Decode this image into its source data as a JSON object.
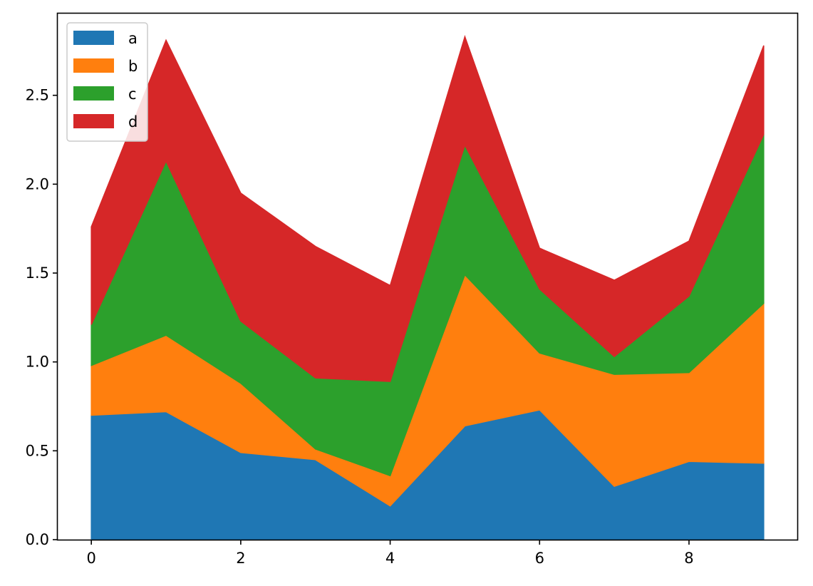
{
  "chart_data": {
    "type": "area",
    "stacked": true,
    "title": "",
    "xlabel": "",
    "ylabel": "",
    "x": [
      0,
      1,
      2,
      3,
      4,
      5,
      6,
      7,
      8,
      9
    ],
    "xlim": [
      -0.45,
      9.45
    ],
    "ylim": [
      0,
      2.96
    ],
    "xticks": [
      0,
      2,
      4,
      6,
      8
    ],
    "yticks": [
      0.0,
      0.5,
      1.0,
      1.5,
      2.0,
      2.5
    ],
    "xtick_labels": [
      "0",
      "2",
      "4",
      "6",
      "8"
    ],
    "ytick_labels": [
      "0.0",
      "0.5",
      "1.0",
      "1.5",
      "2.0",
      "2.5"
    ],
    "grid": false,
    "legend_position": "top-left",
    "series": [
      {
        "name": "a",
        "color": "#1f77b4",
        "values": [
          0.7,
          0.72,
          0.49,
          0.45,
          0.19,
          0.64,
          0.73,
          0.3,
          0.44,
          0.43
        ]
      },
      {
        "name": "b",
        "color": "#ff7f0e",
        "values": [
          0.28,
          0.43,
          0.39,
          0.06,
          0.17,
          0.85,
          0.32,
          0.63,
          0.5,
          0.9
        ]
      },
      {
        "name": "c",
        "color": "#2ca02c",
        "values": [
          0.23,
          0.98,
          0.35,
          0.4,
          0.53,
          0.73,
          0.36,
          0.1,
          0.43,
          0.95
        ]
      },
      {
        "name": "d",
        "color": "#d62728",
        "values": [
          0.55,
          0.68,
          0.72,
          0.74,
          0.54,
          0.61,
          0.23,
          0.43,
          0.31,
          0.5
        ]
      }
    ]
  }
}
